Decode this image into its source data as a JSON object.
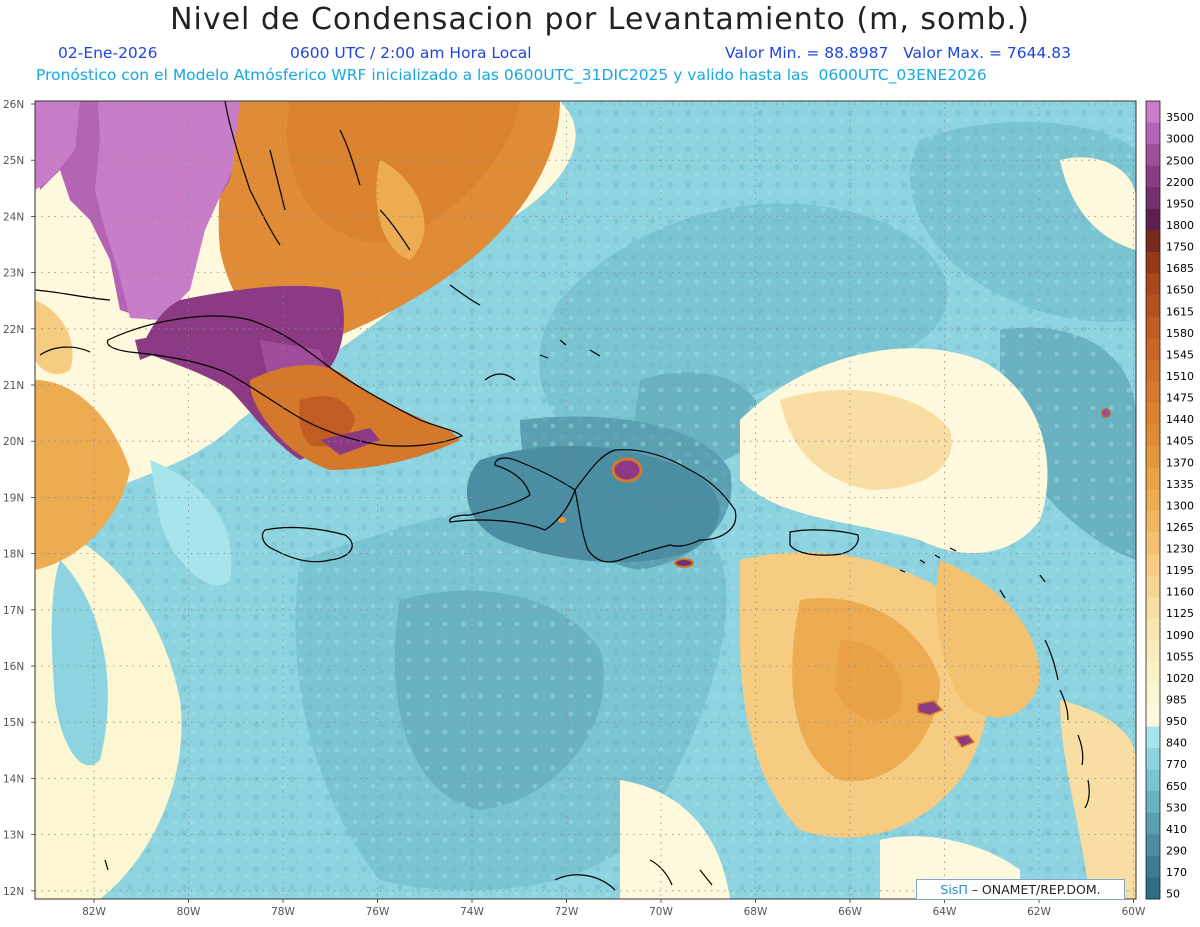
{
  "title": "Nivel de Condensacion por Levantamiento (m, somb.)",
  "header": {
    "date": "02-Ene-2026",
    "time": "0600 UTC / 2:00 am Hora Local",
    "min_max": "Valor Min. = 88.8987   Valor Max. = 7644.83",
    "forecast_info": "Pronóstico con el Modelo Atmósferico WRF inicializado a las 0600UTC_31DIC2025 y valido hasta las  0600UTC_03ENE2026"
  },
  "map": {
    "lon_labels": [
      "82W",
      "80W",
      "78W",
      "76W",
      "74W",
      "72W",
      "70W",
      "68W",
      "66W",
      "64W",
      "62W",
      "60W"
    ],
    "lat_labels": [
      "26N",
      "25N",
      "24N",
      "23N",
      "22N",
      "21N",
      "20N",
      "19N",
      "18N",
      "17N",
      "16N",
      "15N",
      "14N",
      "13N",
      "12N"
    ],
    "grid": true
  },
  "colorbar": {
    "labels": [
      "3500",
      "3000",
      "2500",
      "2200",
      "1950",
      "1800",
      "1750",
      "1685",
      "1650",
      "1615",
      "1580",
      "1545",
      "1510",
      "1475",
      "1440",
      "1405",
      "1370",
      "1335",
      "1300",
      "1265",
      "1230",
      "1195",
      "1160",
      "1125",
      "1090",
      "1055",
      "1020",
      "985",
      "950",
      "840",
      "770",
      "650",
      "530",
      "410",
      "290",
      "170",
      "50"
    ],
    "colors": [
      "#c87dc8",
      "#b564b5",
      "#a04e9b",
      "#8c3a84",
      "#74306e",
      "#5e1f52",
      "#7a2a1c",
      "#96391b",
      "#a8481d",
      "#b5511f",
      "#c15c22",
      "#c96525",
      "#d06f28",
      "#d6782c",
      "#dc8330",
      "#e08c36",
      "#e5973d",
      "#e9a246",
      "#edac52",
      "#f0b760",
      "#f2c270",
      "#f5cc82",
      "#f7d592",
      "#f9dea3",
      "#faE6b2",
      "#fbecbd",
      "#fcf2c8",
      "#fdf6d2",
      "#fef9dc",
      "#a8e4ec",
      "#8ed4e0",
      "#7bc4d2",
      "#6ab2c2",
      "#5aa0b2",
      "#4b8ea3",
      "#3c7d95",
      "#2e6c87"
    ]
  },
  "credit": {
    "brand": "SisΠ",
    "text": " – ONAMET/REP.DOM."
  }
}
